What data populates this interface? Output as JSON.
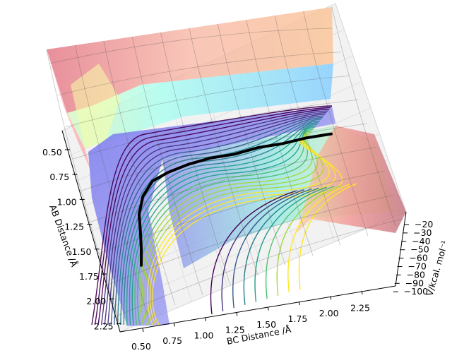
{
  "chart_data": {
    "type": "surface-3d",
    "title": "",
    "xlabel": "AB Distance /Å",
    "ylabel": "BC Distance /Å",
    "zlabel": "V/kcal. mol⁻¹",
    "x_ticks": [
      "0.50",
      "0.75",
      "1.00",
      "1.25",
      "1.50",
      "1.75",
      "2.00",
      "2.25"
    ],
    "y_ticks": [
      "0.50",
      "0.75",
      "1.00",
      "1.25",
      "1.50",
      "1.75",
      "2.00",
      "2.25"
    ],
    "z_ticks": [
      "−20",
      "−30",
      "−40",
      "−50",
      "−60",
      "−70",
      "−80",
      "−90",
      "−100"
    ],
    "xlim": [
      0.5,
      2.25
    ],
    "ylim": [
      0.5,
      2.25
    ],
    "zlim": [
      -100,
      -20
    ],
    "grid": true,
    "surface_colormap": "jet",
    "contour_colormap": "viridis",
    "trajectory": {
      "color": "#000000",
      "description": "reaction path across the potential energy surface",
      "points": [
        {
          "ab": 1.72,
          "bc": 0.69
        },
        {
          "ab": 1.55,
          "bc": 0.68
        },
        {
          "ab": 1.35,
          "bc": 0.66
        },
        {
          "ab": 1.18,
          "bc": 0.64
        },
        {
          "ab": 1.0,
          "bc": 0.66
        },
        {
          "ab": 0.86,
          "bc": 0.73
        },
        {
          "ab": 0.8,
          "bc": 0.86
        },
        {
          "ab": 0.76,
          "bc": 1.02
        },
        {
          "ab": 0.74,
          "bc": 1.2
        },
        {
          "ab": 0.75,
          "bc": 1.4
        },
        {
          "ab": 0.73,
          "bc": 1.6
        },
        {
          "ab": 0.74,
          "bc": 1.8
        },
        {
          "ab": 0.73,
          "bc": 2.0
        },
        {
          "ab": 0.74,
          "bc": 2.2
        }
      ]
    }
  }
}
